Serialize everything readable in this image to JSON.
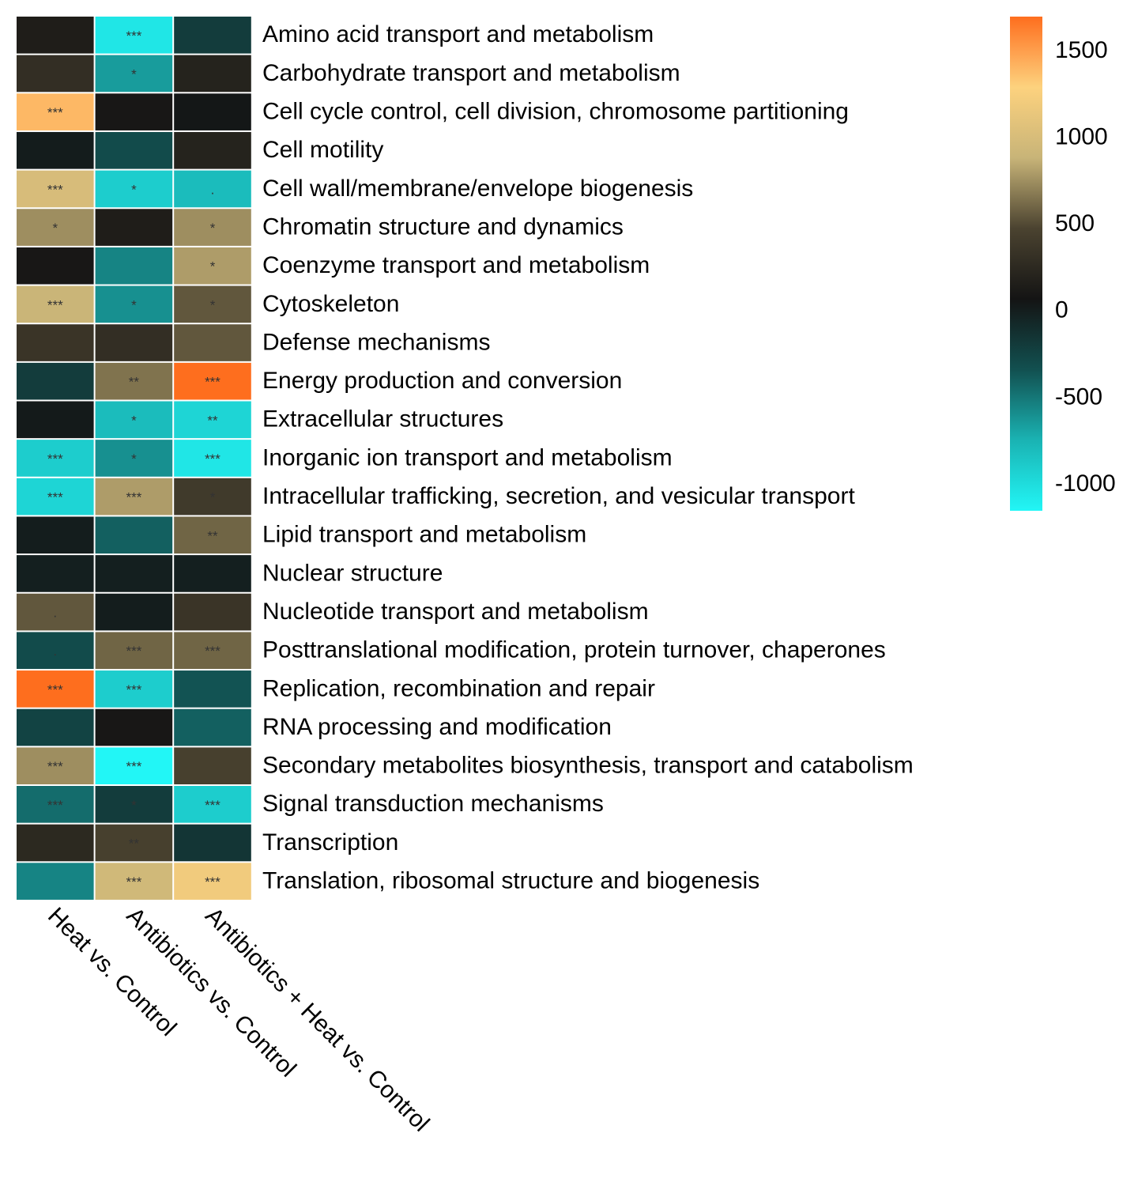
{
  "chart_data": {
    "type": "heatmap",
    "rows": [
      "Amino acid transport and metabolism",
      "Carbohydrate transport and metabolism",
      "Cell cycle control, cell division, chromosome partitioning",
      "Cell motility",
      "Cell wall/membrane/envelope biogenesis",
      "Chromatin structure and dynamics",
      "Coenzyme transport and metabolism",
      "Cytoskeleton",
      "Defense mechanisms",
      "Energy production and conversion",
      "Extracellular structures",
      "Inorganic ion transport and metabolism",
      "Intracellular trafficking, secretion, and vesicular transport",
      "Lipid transport and metabolism",
      "Nuclear structure",
      "Nucleotide transport and metabolism",
      "Posttranslational modification, protein turnover, chaperones",
      "Replication, recombination and repair",
      "RNA processing and modification",
      "Secondary metabolites biosynthesis, transport and catabolism",
      "Signal transduction mechanisms",
      "Transcription",
      "Translation, ribosomal structure and biogenesis"
    ],
    "columns": [
      "Heat vs. Control",
      "Antibiotics vs. Control",
      "Antibiotics + Heat vs. Control"
    ],
    "values": [
      [
        150,
        -1050,
        -200
      ],
      [
        300,
        -650,
        200
      ],
      [
        1400,
        100,
        50
      ],
      [
        20,
        -300,
        200
      ],
      [
        1000,
        -900,
        -800
      ],
      [
        750,
        150,
        750
      ],
      [
        100,
        -550,
        800
      ],
      [
        900,
        -600,
        550
      ],
      [
        350,
        300,
        550
      ],
      [
        -200,
        650,
        1700
      ],
      [
        30,
        -800,
        -950
      ],
      [
        -900,
        -600,
        -1050
      ],
      [
        -950,
        800,
        400
      ],
      [
        10,
        -400,
        600
      ],
      [
        0,
        0,
        0
      ],
      [
        550,
        10,
        350
      ],
      [
        -300,
        600,
        600
      ],
      [
        1700,
        -900,
        -350
      ],
      [
        -250,
        100,
        -400
      ],
      [
        750,
        -1200,
        450
      ],
      [
        -450,
        -200,
        -900
      ],
      [
        250,
        450,
        -150
      ],
      [
        -550,
        950,
        1200
      ]
    ],
    "significance": [
      [
        "",
        "***",
        ""
      ],
      [
        "",
        "*",
        ""
      ],
      [
        "***",
        "",
        ""
      ],
      [
        "",
        "",
        ""
      ],
      [
        "***",
        "*",
        "."
      ],
      [
        "*",
        "",
        "*"
      ],
      [
        "",
        "",
        "*"
      ],
      [
        "***",
        "*",
        "*"
      ],
      [
        "",
        "",
        ""
      ],
      [
        "",
        "**",
        "***"
      ],
      [
        "",
        "*",
        "**"
      ],
      [
        "***",
        "*",
        "***"
      ],
      [
        "***",
        "***",
        "*"
      ],
      [
        "",
        "",
        "**"
      ],
      [
        "",
        "",
        ""
      ],
      [
        ".",
        "",
        ""
      ],
      [
        ".",
        "***",
        "***"
      ],
      [
        "***",
        "***",
        ""
      ],
      [
        "",
        "",
        ""
      ],
      [
        "***",
        "***",
        ""
      ],
      [
        "***",
        "*",
        "***"
      ],
      [
        "",
        "**",
        ""
      ],
      [
        "",
        "***",
        "***"
      ]
    ],
    "colorbar": {
      "ticks": [
        1500,
        1000,
        500,
        0,
        -500,
        -1000
      ],
      "range": [
        -1150,
        1700
      ],
      "colors": [
        "#22f6f6",
        "#1ab3b3",
        "#125050",
        "#141414",
        "#4b4330",
        "#c8b478",
        "#fdd27e",
        "#fe6e1e"
      ]
    }
  }
}
